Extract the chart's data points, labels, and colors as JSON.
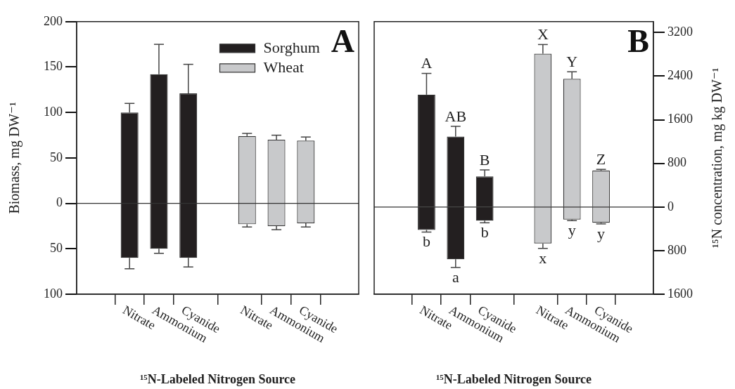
{
  "chart_data": [
    {
      "type": "bar",
      "stacked": true,
      "legend": "top right",
      "xlabel": "¹⁵N-Labeled Nitrogen Source",
      "ylabel": "Biomass, mg DW⁻¹",
      "annotations": [
        "A"
      ],
      "categories": [
        "Nitrate",
        "Ammonium",
        "Cyanide",
        null,
        "Nitrate",
        "Ammonium",
        "Cyanide"
      ],
      "ylim": [
        -100,
        200
      ],
      "yticks": [
        {
          "value": -100,
          "label": "100"
        },
        {
          "value": -50,
          "label": "50"
        },
        0,
        50,
        100,
        150,
        200
      ],
      "ref_lines": [
        {
          "axis": "y",
          "value": 0
        }
      ],
      "series": [
        {
          "name": "Sorghum",
          "color": "#231f20",
          "values": [
            100,
            142,
            121,
            null,
            null,
            null,
            null
          ],
          "errors": [
            [
              100,
              110
            ],
            [
              142,
              175
            ],
            [
              121,
              153
            ],
            null,
            null,
            null,
            null
          ]
        },
        {
          "color": "#231f20",
          "values": [
            -60,
            -50,
            -60,
            null,
            null,
            null,
            null
          ],
          "errors": [
            [
              -72,
              -60
            ],
            [
              -55,
              -50
            ],
            [
              -70,
              -60
            ],
            null,
            null,
            null,
            null
          ]
        },
        {
          "name": "Wheat",
          "color": "#c8c9cb",
          "values": [
            null,
            null,
            null,
            null,
            74,
            70,
            69
          ],
          "errors": [
            null,
            null,
            null,
            null,
            [
              74,
              77
            ],
            [
              70,
              75
            ],
            [
              69,
              73
            ]
          ]
        },
        {
          "color": "#c8c9cb",
          "values": [
            null,
            null,
            null,
            null,
            -23,
            -25,
            -22
          ],
          "errors": [
            null,
            null,
            null,
            null,
            [
              -26,
              -23
            ],
            [
              -29,
              -25
            ],
            [
              -26,
              -22
            ]
          ]
        }
      ]
    },
    {
      "type": "bar",
      "stacked": true,
      "xlabel": "¹⁵N-Labeled Nitrogen Source",
      "y2label": "¹⁵N concentration, mg kg DW⁻¹",
      "annotations": [
        "B"
      ],
      "categories": [
        "Nitrate",
        "Ammonium",
        "Cyanide",
        null,
        "Nitrate",
        "Ammonium",
        "Cyanide"
      ],
      "y2lim": [
        -1600,
        3400
      ],
      "y2ticks": [
        {
          "value": -1600,
          "label": "1600"
        },
        {
          "value": -800,
          "label": "800"
        },
        0,
        800,
        1600,
        2400,
        3200
      ],
      "ref_lines": [
        {
          "axis": "y2",
          "value": 0
        }
      ],
      "series": [
        {
          "axis": "y2",
          "color": "#231f20",
          "values": [
            2060,
            1290,
            560,
            null,
            null,
            null,
            null
          ],
          "errors": [
            [
              2060,
              2450
            ],
            [
              1290,
              1480
            ],
            [
              560,
              680
            ],
            null,
            null,
            null,
            null
          ],
          "value_labels": [
            "A",
            "AB",
            "B",
            null,
            null,
            null,
            null
          ]
        },
        {
          "axis": "y2",
          "color": "#231f20",
          "values": [
            -420,
            -960,
            -250,
            null,
            null,
            null,
            null
          ],
          "errors": [
            [
              -460,
              -420
            ],
            [
              -1110,
              -960
            ],
            [
              -290,
              -250
            ],
            null,
            null,
            null,
            null
          ],
          "value_labels": [
            "b",
            "a",
            "b",
            null,
            null,
            null,
            null
          ]
        },
        {
          "axis": "y2",
          "color": "#c8c9cb",
          "values": [
            null,
            null,
            null,
            null,
            2810,
            2350,
            670
          ],
          "errors": [
            null,
            null,
            null,
            null,
            [
              2810,
              2980
            ],
            [
              2350,
              2480
            ],
            [
              670,
              690
            ]
          ],
          "value_labels": [
            null,
            null,
            null,
            null,
            "X",
            "Y",
            "Z"
          ]
        },
        {
          "axis": "y2",
          "color": "#c8c9cb",
          "values": [
            null,
            null,
            null,
            null,
            -670,
            -230,
            -290
          ],
          "errors": [
            null,
            null,
            null,
            null,
            [
              -760,
              -670
            ],
            [
              -250,
              -230
            ],
            [
              -310,
              -290
            ]
          ],
          "value_labels": [
            null,
            null,
            null,
            null,
            "x",
            "y",
            "y"
          ]
        }
      ]
    }
  ]
}
